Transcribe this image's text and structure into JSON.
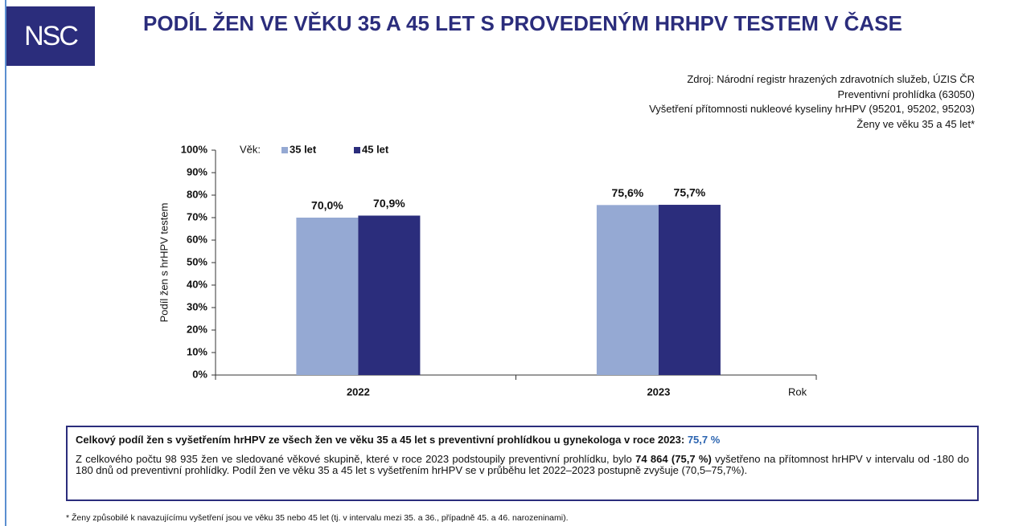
{
  "header": {
    "logo": "NSC",
    "title": "PODÍL ŽEN VE VĚKU 35 A 45 LET S PROVEDENÝM HRHPV TESTEM V ČASE"
  },
  "source": [
    "Zdroj: Národní registr hrazených zdravotních služeb, ÚZIS ČR",
    "Preventivní prohlídka (63050)",
    "Vyšetření přítomnosti nukleové kyseliny hrHPV (95201, 95202, 95203)",
    "Ženy ve věku 35 a 45 let*"
  ],
  "chart_data": {
    "type": "bar",
    "ylabel": "Podíl žen s hrHPV testem",
    "xlabel": "Rok",
    "legend_title": "Věk:",
    "categories": [
      "2022",
      "2023"
    ],
    "series": [
      {
        "name": "35 let",
        "color": "#95a9d3",
        "values": [
          70.0,
          75.6
        ],
        "value_labels": [
          "70,0%",
          "75,6%"
        ]
      },
      {
        "name": "45 let",
        "color": "#2b2d7c",
        "values": [
          70.9,
          75.7
        ],
        "value_labels": [
          "70,9%",
          "75,7%"
        ]
      }
    ],
    "ylim": [
      0,
      100
    ],
    "yticks": [
      {
        "value": 0,
        "label": "0%"
      },
      {
        "value": 10,
        "label": "10%"
      },
      {
        "value": 20,
        "label": "20%"
      },
      {
        "value": 30,
        "label": "30%"
      },
      {
        "value": 40,
        "label": "40%"
      },
      {
        "value": 50,
        "label": "50%"
      },
      {
        "value": 60,
        "label": "60%"
      },
      {
        "value": 70,
        "label": "70%"
      },
      {
        "value": 80,
        "label": "80%"
      },
      {
        "value": 90,
        "label": "90%"
      },
      {
        "value": 100,
        "label": "100%"
      }
    ],
    "grid": false,
    "legend": "top"
  },
  "summary": {
    "headline": "Celkový podíl žen s vyšetřením hrHPV ze všech žen ve věku 35 a 45 let s preventivní prohlídkou u gynekologa v roce 2023:",
    "headline_value": "75,7 %",
    "body": [
      "Z celkového počtu 98 935 žen ve sledované věkové skupině, které v roce 2023 podstoupily preventivní prohlídku, bylo ",
      "74 864 (75,7 %)",
      " vyšetřeno na přítomnost hrHPV v intervalu od -180 do 180 dnů od preventivní prohlídky. Podíl žen ve věku 35 a 45 let s vyšetřením hrHPV se v průběhu let 2022–2023 postupně zvyšuje (70,5–75,7%)."
    ]
  },
  "footnote": "* Ženy způsobilé k navazujícímu vyšetření jsou ve věku 35 nebo 45 let (tj. v intervalu mezi 35. a 36., případně 45. a 46. narozeninami)."
}
